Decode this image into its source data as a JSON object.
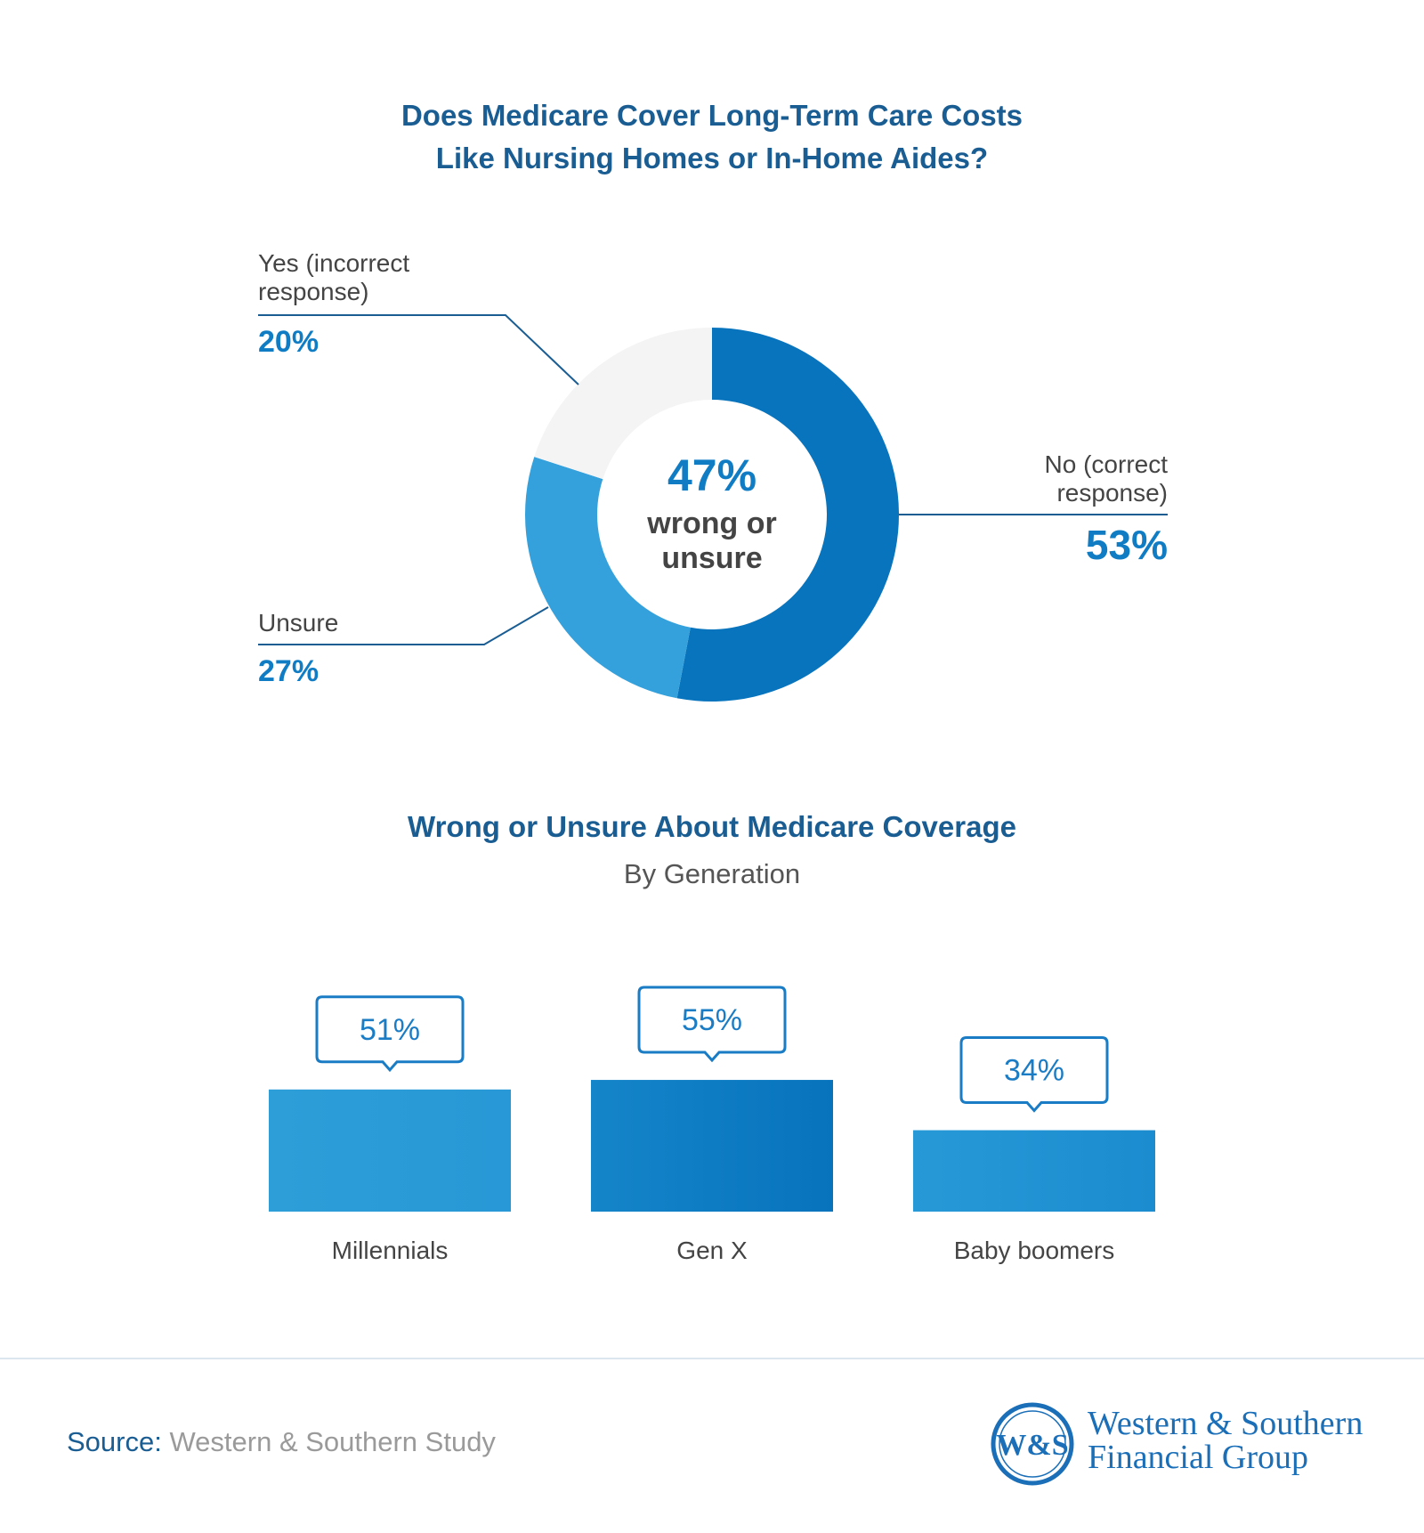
{
  "chart1": {
    "title_line1": "Does Medicare Cover Long-Term Care Costs",
    "title_line2": "Like Nursing Homes or In-Home Aides?",
    "center_value": "47%",
    "center_label_line1": "wrong or",
    "center_label_line2": "unsure",
    "labels": [
      {
        "line1": "No (correct",
        "line2": "response)",
        "value": "53%"
      },
      {
        "line1": "Unsure",
        "line2": "",
        "value": "27%"
      },
      {
        "line1": "Yes (incorrect",
        "line2": "response)",
        "value": "20%"
      }
    ]
  },
  "chart2": {
    "title": "Wrong or Unsure About Medicare Coverage",
    "subtitle": "By Generation",
    "value_labels": [
      "51%",
      "55%",
      "34%"
    ]
  },
  "chart_data": [
    {
      "type": "pie",
      "title": "Does Medicare Cover Long-Term Care Costs Like Nursing Homes or In-Home Aides?",
      "categories": [
        "No (correct response)",
        "Unsure",
        "Yes (incorrect response)"
      ],
      "values": [
        53,
        27,
        20
      ],
      "colors": [
        "#0774bd",
        "#35a1dc",
        "#f4f4f5"
      ]
    },
    {
      "type": "bar",
      "title": "Wrong or Unsure About Medicare Coverage",
      "subtitle": "By Generation",
      "categories": [
        "Millennials",
        "Gen X",
        "Baby boomers"
      ],
      "values": [
        51,
        55,
        34
      ],
      "colors": [
        "#2b9bd8",
        "#0f7cc4",
        "#2293d4"
      ],
      "ylim": [
        0,
        100
      ]
    }
  ],
  "footer": {
    "source_label": "Source:",
    "source_text": "Western & Southern Study",
    "logo_monogram": "W&S",
    "logo_line1": "Western & Southern",
    "logo_line2": "Financial Group"
  },
  "colors": {
    "title": "#1a5d93",
    "accent": "#0774bd",
    "value_text": "#0f7cc4"
  }
}
